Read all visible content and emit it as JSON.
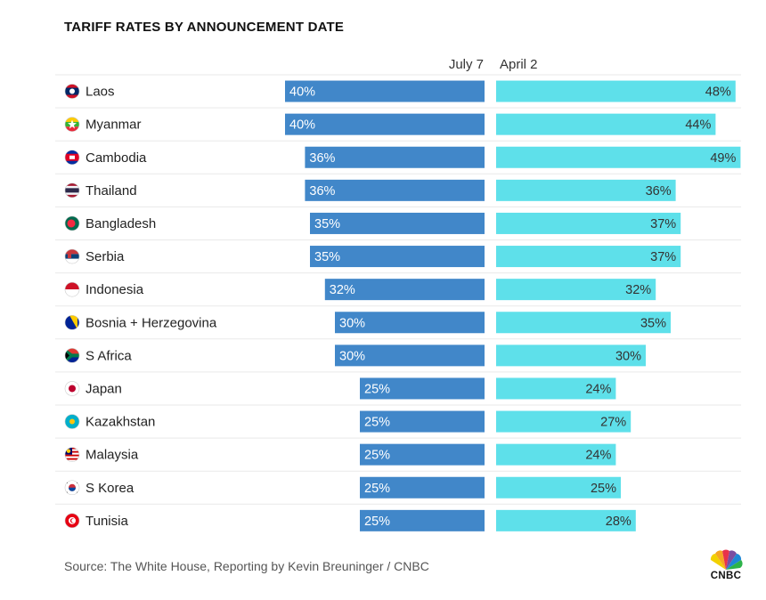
{
  "title": "TARIFF RATES BY ANNOUNCEMENT DATE",
  "source": "Source: The White House, Reporting by Kevin Breuninger / CNBC",
  "logo_text": "CNBC",
  "colors": {
    "july7": "#4187c9",
    "april2": "#5ee0ea",
    "divider": "#e9e9e9"
  },
  "chart_data": {
    "type": "bar",
    "title": "TARIFF RATES BY ANNOUNCEMENT DATE",
    "categories": [
      "Laos",
      "Myanmar",
      "Cambodia",
      "Thailand",
      "Bangladesh",
      "Serbia",
      "Indonesia",
      "Bosnia + Herzegovina",
      "S Africa",
      "Japan",
      "Kazakhstan",
      "Malaysia",
      "S Korea",
      "Tunisia"
    ],
    "series": [
      {
        "name": "July 7",
        "values": [
          40,
          40,
          36,
          36,
          35,
          35,
          32,
          30,
          30,
          25,
          25,
          25,
          25,
          25
        ],
        "labels": [
          "40%",
          "40%",
          "36%",
          "36%",
          "35%",
          "35%",
          "32%",
          "30%",
          "30%",
          "25%",
          "25%",
          "25%",
          "25%",
          "25%"
        ]
      },
      {
        "name": "April 2",
        "values": [
          48,
          44,
          49,
          36,
          37,
          37,
          32,
          35,
          30,
          24,
          27,
          24,
          25,
          28
        ],
        "labels": [
          "48%",
          "44%",
          "49%",
          "36%",
          "37%",
          "37%",
          "32%",
          "35%",
          "30%",
          "24%",
          "27%",
          "24%",
          "25%",
          "28%"
        ]
      }
    ],
    "flag_icons": [
      "laos-flag-icon",
      "myanmar-flag-icon",
      "cambodia-flag-icon",
      "thailand-flag-icon",
      "bangladesh-flag-icon",
      "serbia-flag-icon",
      "indonesia-flag-icon",
      "bosnia-flag-icon",
      "south-africa-flag-icon",
      "japan-flag-icon",
      "kazakhstan-flag-icon",
      "malaysia-flag-icon",
      "south-korea-flag-icon",
      "tunisia-flag-icon"
    ],
    "xlabel": "",
    "ylabel": "",
    "grid": false,
    "layout": "butterfly"
  }
}
